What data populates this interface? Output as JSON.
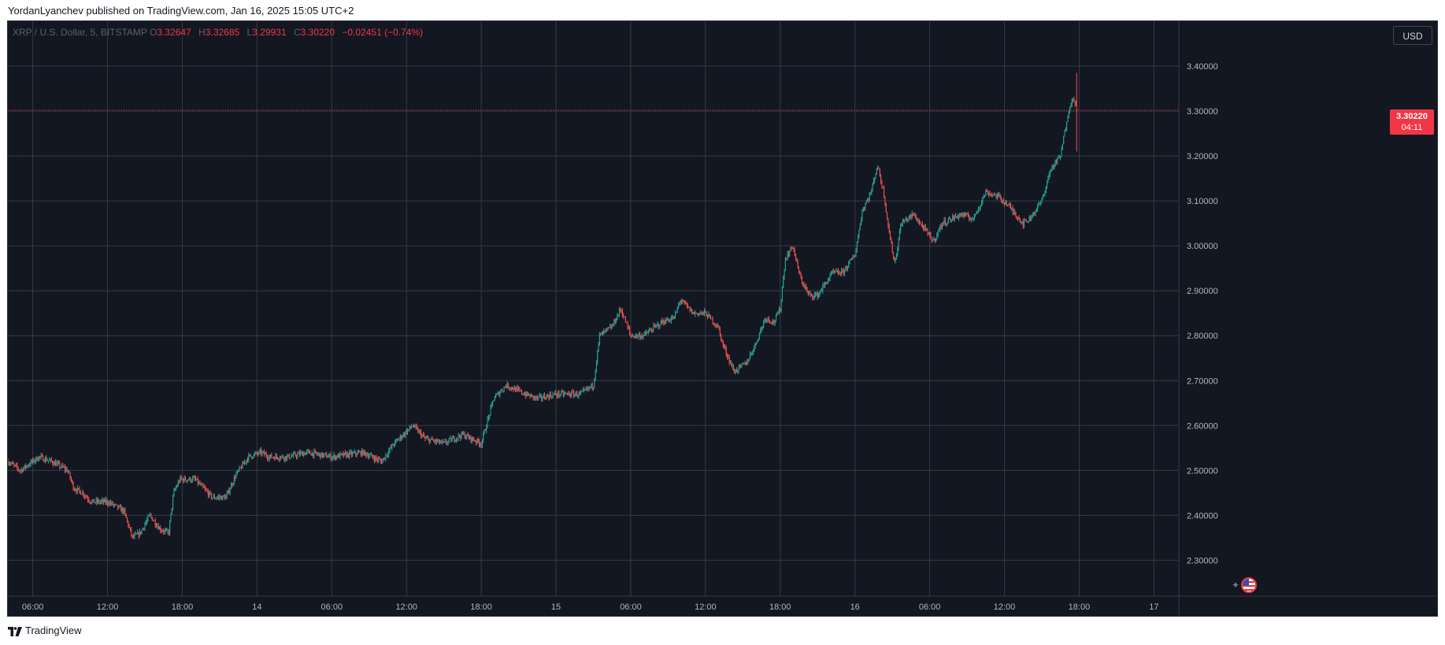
{
  "header": {
    "published_text": "YordanLyanchev published on TradingView.com, Jan 16, 2025 15:05 UTC+2"
  },
  "legend": {
    "symbol": "XRP / U.S. Dollar, 5, BITSTAMP",
    "o_label": "O",
    "o_value": "3.32647",
    "h_label": "H",
    "h_value": "3.32685",
    "l_label": "L",
    "l_value": "3.29931",
    "c_label": "C",
    "c_value": "3.30220",
    "change": "−0.02451 (−0.74%)"
  },
  "currency": "USD",
  "last_price": {
    "value": "3.30220",
    "countdown": "04:11"
  },
  "footer": {
    "brand": "TradingView"
  },
  "colors": {
    "background": "#131722",
    "grid": "#363a45",
    "up": "#26a69a",
    "down": "#ef5350",
    "price_line": "#f23645",
    "axis_text": "#b2b5be"
  },
  "icons": [
    "flag-icon",
    "sparkle-icon",
    "tradingview-logo-icon"
  ],
  "chart_data": {
    "type": "candlestick",
    "title": "XRP / U.S. Dollar, 5, BITSTAMP",
    "y_ticks": [
      "3.40000",
      "3.30000",
      "3.20000",
      "3.10000",
      "3.00000",
      "2.90000",
      "2.80000",
      "2.70000",
      "2.60000",
      "2.50000",
      "2.40000",
      "2.30000"
    ],
    "ylim": [
      2.22,
      3.5
    ],
    "x_ticks": [
      "06:00",
      "12:00",
      "18:00",
      "14",
      "06:00",
      "12:00",
      "18:00",
      "15",
      "06:00",
      "12:00",
      "18:00",
      "16",
      "06:00",
      "12:00",
      "18:00",
      "17"
    ],
    "x_tick_hours": [
      6,
      12,
      18,
      24,
      30,
      36,
      42,
      48,
      54,
      60,
      66,
      72,
      78,
      84,
      90,
      96
    ],
    "x_range_hours": [
      4,
      98
    ],
    "grid": true,
    "last_close": 3.3022,
    "close_path": [
      {
        "x": 4.0,
        "y": 2.52
      },
      {
        "x": 5.0,
        "y": 2.5
      },
      {
        "x": 6.5,
        "y": 2.53
      },
      {
        "x": 7.5,
        "y": 2.52
      },
      {
        "x": 8.8,
        "y": 2.5
      },
      {
        "x": 9.3,
        "y": 2.46
      },
      {
        "x": 10.0,
        "y": 2.45
      },
      {
        "x": 10.7,
        "y": 2.43
      },
      {
        "x": 12.0,
        "y": 2.43
      },
      {
        "x": 13.3,
        "y": 2.41
      },
      {
        "x": 14.0,
        "y": 2.35
      },
      {
        "x": 14.6,
        "y": 2.36
      },
      {
        "x": 15.4,
        "y": 2.4
      },
      {
        "x": 16.2,
        "y": 2.37
      },
      {
        "x": 16.9,
        "y": 2.36
      },
      {
        "x": 17.3,
        "y": 2.45
      },
      {
        "x": 17.8,
        "y": 2.48
      },
      {
        "x": 19.0,
        "y": 2.48
      },
      {
        "x": 19.7,
        "y": 2.46
      },
      {
        "x": 20.4,
        "y": 2.44
      },
      {
        "x": 21.5,
        "y": 2.44
      },
      {
        "x": 22.3,
        "y": 2.49
      },
      {
        "x": 23.3,
        "y": 2.53
      },
      {
        "x": 24.3,
        "y": 2.54
      },
      {
        "x": 25.0,
        "y": 2.53
      },
      {
        "x": 26.5,
        "y": 2.53
      },
      {
        "x": 28.0,
        "y": 2.54
      },
      {
        "x": 30.0,
        "y": 2.53
      },
      {
        "x": 32.5,
        "y": 2.54
      },
      {
        "x": 34.0,
        "y": 2.52
      },
      {
        "x": 35.0,
        "y": 2.56
      },
      {
        "x": 36.5,
        "y": 2.6
      },
      {
        "x": 37.5,
        "y": 2.57
      },
      {
        "x": 39.0,
        "y": 2.56
      },
      {
        "x": 40.5,
        "y": 2.58
      },
      {
        "x": 42.0,
        "y": 2.56
      },
      {
        "x": 43.0,
        "y": 2.66
      },
      {
        "x": 44.0,
        "y": 2.69
      },
      {
        "x": 45.5,
        "y": 2.67
      },
      {
        "x": 46.5,
        "y": 2.66
      },
      {
        "x": 48.0,
        "y": 2.67
      },
      {
        "x": 50.0,
        "y": 2.67
      },
      {
        "x": 51.0,
        "y": 2.69
      },
      {
        "x": 51.5,
        "y": 2.8
      },
      {
        "x": 52.5,
        "y": 2.82
      },
      {
        "x": 53.2,
        "y": 2.86
      },
      {
        "x": 54.0,
        "y": 2.8
      },
      {
        "x": 55.0,
        "y": 2.8
      },
      {
        "x": 56.5,
        "y": 2.83
      },
      {
        "x": 57.5,
        "y": 2.84
      },
      {
        "x": 58.0,
        "y": 2.88
      },
      {
        "x": 59.0,
        "y": 2.85
      },
      {
        "x": 60.0,
        "y": 2.85
      },
      {
        "x": 61.0,
        "y": 2.82
      },
      {
        "x": 61.4,
        "y": 2.78
      },
      {
        "x": 62.3,
        "y": 2.72
      },
      {
        "x": 63.3,
        "y": 2.74
      },
      {
        "x": 64.0,
        "y": 2.78
      },
      {
        "x": 64.8,
        "y": 2.84
      },
      {
        "x": 65.5,
        "y": 2.83
      },
      {
        "x": 66.0,
        "y": 2.86
      },
      {
        "x": 66.4,
        "y": 2.97
      },
      {
        "x": 67.0,
        "y": 3.0
      },
      {
        "x": 67.6,
        "y": 2.93
      },
      {
        "x": 68.3,
        "y": 2.89
      },
      {
        "x": 69.0,
        "y": 2.89
      },
      {
        "x": 70.2,
        "y": 2.94
      },
      {
        "x": 71.0,
        "y": 2.94
      },
      {
        "x": 72.0,
        "y": 2.98
      },
      {
        "x": 72.6,
        "y": 3.08
      },
      {
        "x": 73.3,
        "y": 3.12
      },
      {
        "x": 73.8,
        "y": 3.18
      },
      {
        "x": 74.3,
        "y": 3.12
      },
      {
        "x": 74.8,
        "y": 3.02
      },
      {
        "x": 75.2,
        "y": 2.96
      },
      {
        "x": 75.7,
        "y": 3.05
      },
      {
        "x": 76.7,
        "y": 3.07
      },
      {
        "x": 77.5,
        "y": 3.04
      },
      {
        "x": 78.3,
        "y": 3.01
      },
      {
        "x": 79.0,
        "y": 3.05
      },
      {
        "x": 80.5,
        "y": 3.07
      },
      {
        "x": 81.5,
        "y": 3.06
      },
      {
        "x": 82.5,
        "y": 3.12
      },
      {
        "x": 83.5,
        "y": 3.11
      },
      {
        "x": 84.3,
        "y": 3.09
      },
      {
        "x": 85.5,
        "y": 3.05
      },
      {
        "x": 86.0,
        "y": 3.06
      },
      {
        "x": 87.0,
        "y": 3.1
      },
      {
        "x": 87.7,
        "y": 3.17
      },
      {
        "x": 88.5,
        "y": 3.2
      },
      {
        "x": 89.2,
        "y": 3.31
      },
      {
        "x": 89.6,
        "y": 3.33
      },
      {
        "x": 89.8,
        "y": 3.3022
      }
    ]
  }
}
